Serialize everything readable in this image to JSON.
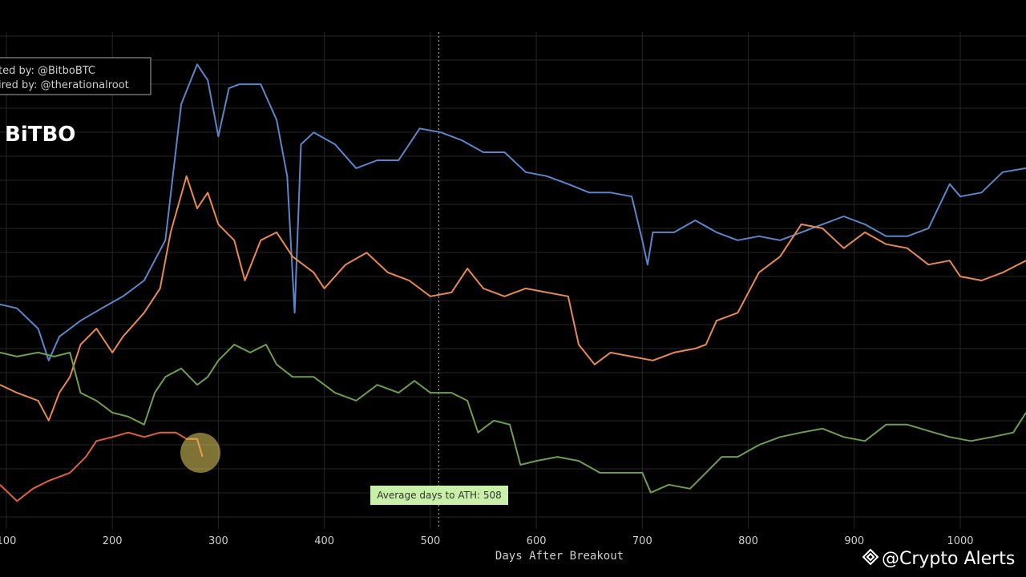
{
  "chart_data": {
    "type": "line",
    "xlabel": "Days After Breakout",
    "xlim": [
      94,
      1062
    ],
    "xticks": [
      100,
      200,
      300,
      400,
      500,
      600,
      700,
      800,
      900,
      1000
    ],
    "ylim": [
      0,
      100
    ],
    "grid": true,
    "credits": [
      "ted by: @BitboBTC",
      "ired by: @therationalroot"
    ],
    "logo": "BiTBO",
    "avg_days": 508,
    "annotation": "Average days to ATH: 508",
    "watermark": "@Crypto Alerts",
    "series": [
      {
        "color": "#5b86c9",
        "x": [
          94,
          110,
          130,
          140,
          150,
          170,
          190,
          210,
          230,
          250,
          265,
          280,
          290,
          300,
          310,
          320,
          340,
          355,
          365,
          372,
          378,
          390,
          410,
          430,
          450,
          470,
          490,
          510,
          530,
          550,
          570,
          590,
          610,
          630,
          650,
          670,
          690,
          700,
          705,
          710,
          730,
          750,
          770,
          790,
          810,
          830,
          850,
          870,
          890,
          910,
          930,
          950,
          970,
          990,
          1000,
          1020,
          1040,
          1062
        ],
        "values": [
          45.2,
          44.4,
          40.3,
          33.9,
          38.7,
          41.9,
          44.4,
          46.8,
          50.0,
          58.1,
          85.5,
          93.5,
          90.3,
          79.0,
          88.7,
          89.5,
          89.5,
          82.3,
          71.0,
          43.5,
          77.4,
          79.8,
          77.4,
          72.6,
          74.2,
          74.2,
          80.6,
          79.8,
          78.2,
          75.8,
          75.8,
          71.8,
          71.0,
          69.4,
          67.7,
          67.7,
          66.9,
          58.1,
          53.2,
          59.7,
          59.7,
          62.1,
          59.7,
          58.1,
          58.9,
          58.1,
          59.7,
          61.3,
          62.9,
          61.3,
          58.9,
          58.9,
          60.5,
          69.4,
          66.9,
          67.7,
          71.8,
          72.6
        ]
      },
      {
        "color": "#e8894f",
        "x": [
          94,
          110,
          130,
          140,
          150,
          160,
          170,
          185,
          200,
          210,
          230,
          245,
          255,
          270,
          280,
          290,
          300,
          315,
          325,
          340,
          355,
          370,
          390,
          400,
          420,
          440,
          460,
          480,
          500,
          520,
          535,
          550,
          570,
          590,
          610,
          630,
          640,
          655,
          670,
          690,
          710,
          730,
          750,
          760,
          770,
          790,
          810,
          830,
          850,
          870,
          890,
          910,
          930,
          950,
          970,
          990,
          1000,
          1020,
          1040,
          1062
        ],
        "values": [
          29.0,
          27.4,
          25.8,
          21.8,
          27.4,
          30.6,
          37.1,
          40.3,
          35.5,
          38.7,
          43.5,
          48.4,
          59.7,
          71.0,
          64.5,
          67.7,
          61.3,
          58.1,
          50.0,
          58.1,
          59.7,
          54.8,
          51.6,
          48.4,
          53.2,
          55.6,
          51.6,
          50.0,
          46.8,
          47.6,
          52.4,
          48.4,
          46.8,
          48.4,
          47.6,
          46.8,
          37.1,
          33.1,
          35.5,
          34.7,
          33.9,
          35.5,
          36.3,
          37.1,
          41.9,
          43.5,
          51.6,
          54.8,
          61.3,
          60.5,
          56.5,
          59.7,
          57.3,
          56.5,
          53.2,
          54.0,
          50.8,
          50.0,
          51.6,
          54.0
        ]
      },
      {
        "color": "#6f9e4e",
        "x": [
          94,
          110,
          130,
          145,
          160,
          170,
          185,
          200,
          215,
          230,
          240,
          250,
          265,
          280,
          290,
          300,
          315,
          330,
          345,
          355,
          370,
          390,
          410,
          430,
          450,
          470,
          485,
          500,
          520,
          535,
          545,
          560,
          575,
          585,
          600,
          620,
          640,
          660,
          680,
          700,
          708,
          725,
          745,
          760,
          775,
          790,
          810,
          830,
          850,
          870,
          890,
          910,
          930,
          950,
          975,
          990,
          1010,
          1030,
          1050,
          1062
        ],
        "values": [
          35.5,
          34.7,
          35.5,
          34.7,
          35.5,
          27.4,
          25.8,
          23.4,
          22.6,
          21.0,
          27.4,
          30.6,
          32.3,
          29.0,
          30.6,
          33.9,
          37.1,
          35.5,
          37.1,
          33.1,
          30.6,
          30.6,
          27.4,
          25.8,
          29.0,
          27.4,
          29.8,
          27.4,
          27.4,
          25.8,
          19.4,
          21.8,
          21.0,
          12.9,
          13.7,
          14.5,
          13.7,
          11.3,
          11.3,
          11.3,
          7.3,
          8.9,
          8.1,
          11.3,
          14.5,
          14.5,
          16.9,
          18.5,
          19.4,
          20.2,
          18.5,
          17.7,
          21.0,
          21.0,
          19.4,
          18.5,
          17.7,
          18.5,
          19.4,
          23.4
        ]
      },
      {
        "color": "#e0623a",
        "x": [
          94,
          110,
          125,
          140,
          160,
          175,
          185,
          200,
          215,
          230,
          245,
          260,
          270,
          280,
          285
        ],
        "values": [
          8.9,
          5.6,
          8.1,
          9.7,
          11.3,
          14.5,
          17.7,
          18.5,
          19.4,
          18.5,
          19.4,
          19.4,
          18.1,
          18.1,
          14.5
        ]
      }
    ]
  }
}
